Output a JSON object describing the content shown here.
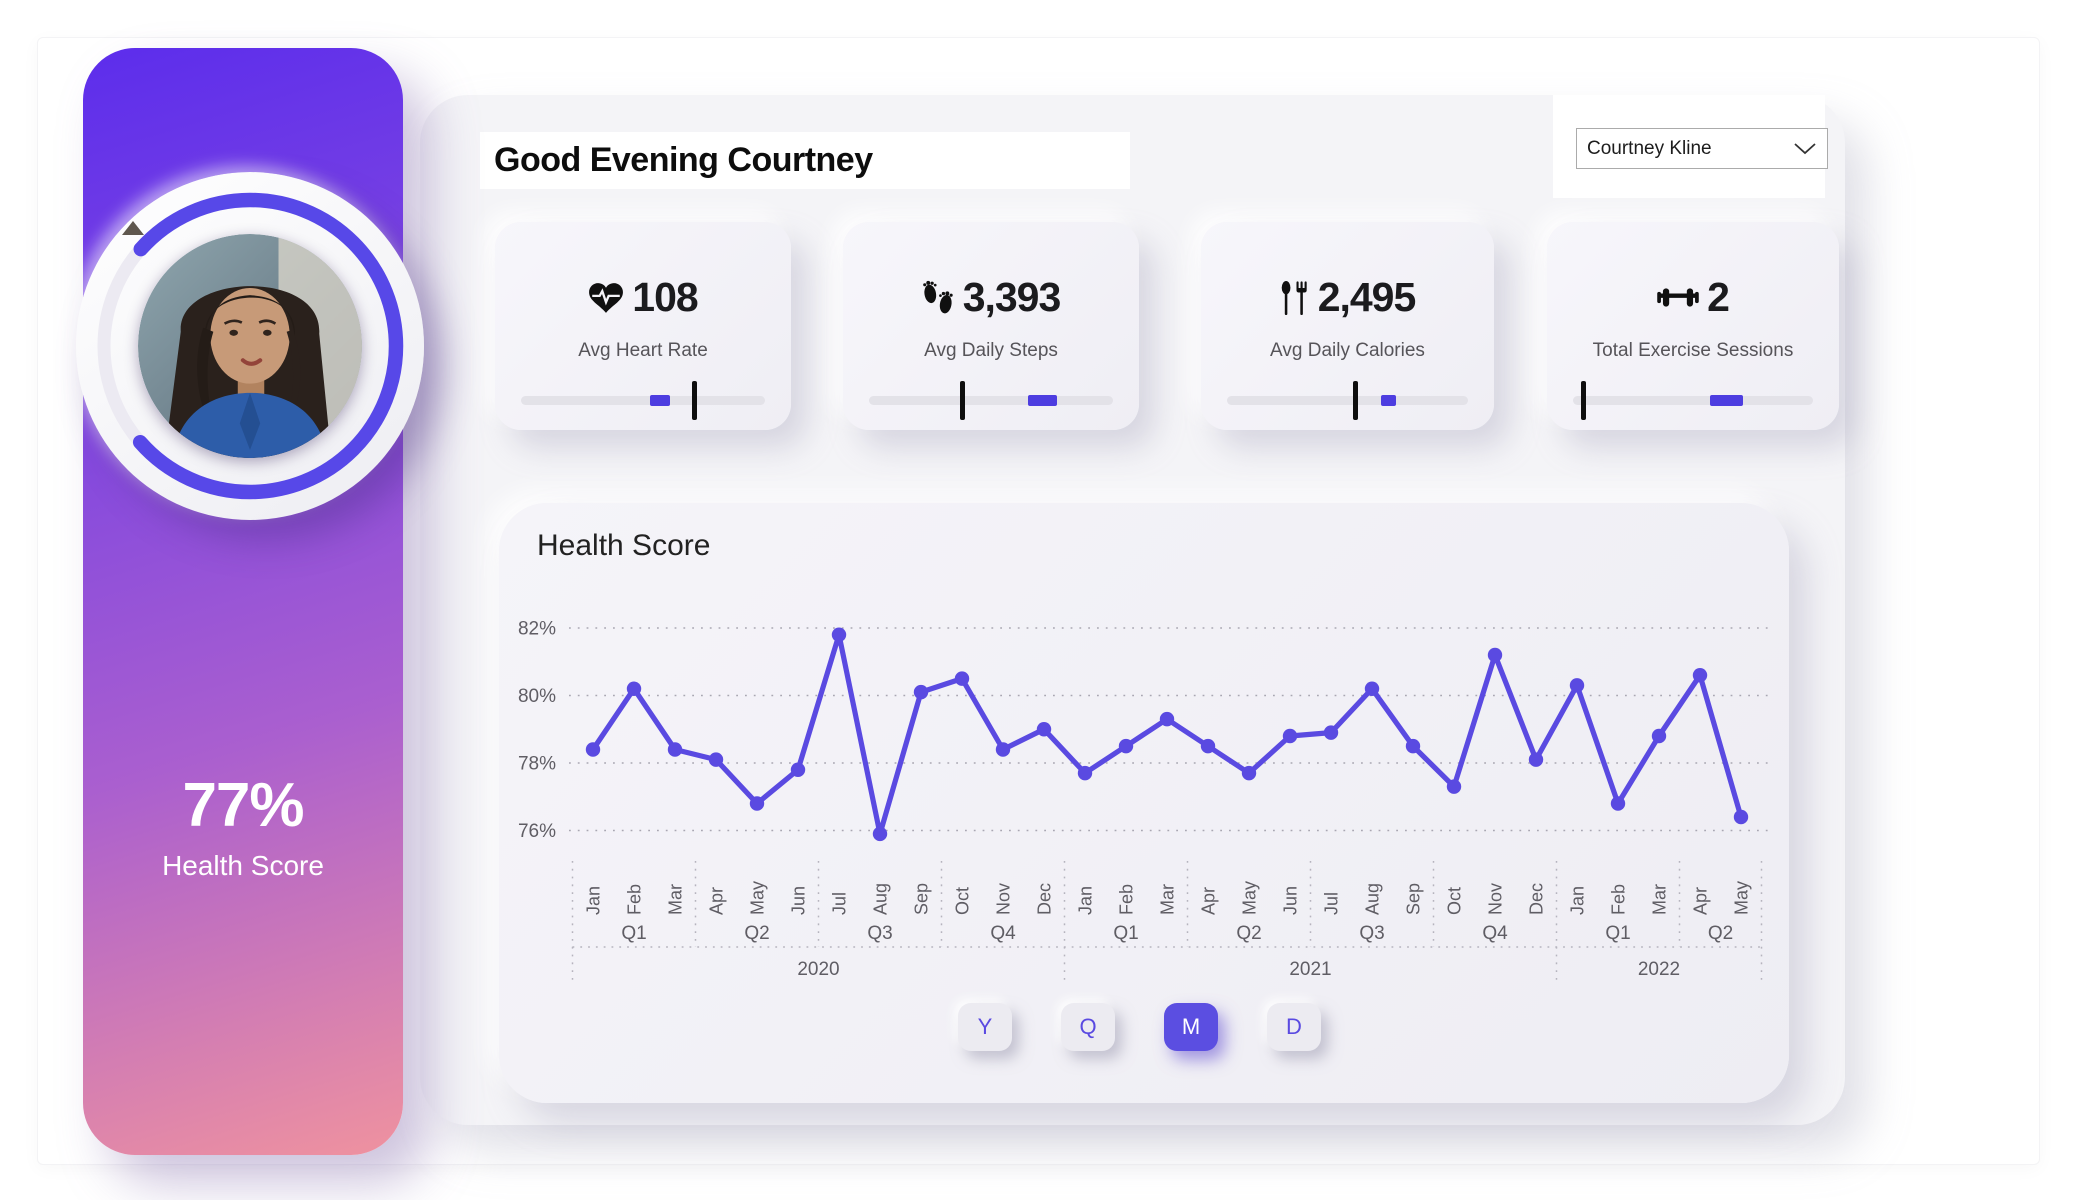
{
  "sidebar": {
    "health_score_value": "77%",
    "health_score_label": "Health Score",
    "ring_percent": 77
  },
  "header": {
    "greeting": "Good Evening Courtney",
    "user_dropdown": {
      "selected": "Courtney Kline"
    }
  },
  "kpi_cards": [
    {
      "icon": "heart-pulse-icon",
      "value": "108",
      "label": "Avg Heart Rate",
      "slider": {
        "fill_start": 53,
        "fill_end": 61,
        "marker": 71
      }
    },
    {
      "icon": "footprints-icon",
      "value": "3,393",
      "label": "Avg Daily Steps",
      "slider": {
        "fill_start": 65,
        "fill_end": 77,
        "marker": 38
      }
    },
    {
      "icon": "cutlery-icon",
      "value": "2,495",
      "label": "Avg Daily Calories",
      "slider": {
        "fill_start": 64,
        "fill_end": 70,
        "marker": 53
      }
    },
    {
      "icon": "dumbbell-icon",
      "value": "2",
      "label": "Total Exercise Sessions",
      "slider": {
        "fill_start": 57,
        "fill_end": 71,
        "marker": 4
      }
    }
  ],
  "chart_data": {
    "type": "line",
    "title": "Health Score",
    "legend": "none",
    "grid": "dotted-horizontal",
    "line_color": "#5A4AE1",
    "ylim": [
      75.5,
      82.5
    ],
    "y_axis": {
      "ticks": [
        {
          "label": "82%",
          "value": 82
        },
        {
          "label": "80%",
          "value": 80
        },
        {
          "label": "78%",
          "value": 78
        },
        {
          "label": "76%",
          "value": 76
        }
      ]
    },
    "x_axis": {
      "months": [
        "Jan",
        "Feb",
        "Mar",
        "Apr",
        "May",
        "Jun",
        "Jul",
        "Aug",
        "Sep",
        "Oct",
        "Nov",
        "Dec",
        "Jan",
        "Feb",
        "Mar",
        "Apr",
        "May",
        "Jun",
        "Jul",
        "Aug",
        "Sep",
        "Oct",
        "Nov",
        "Dec",
        "Jan",
        "Feb",
        "Mar",
        "Apr",
        "May"
      ],
      "quarters": [
        {
          "label": "Q1",
          "months": 3
        },
        {
          "label": "Q2",
          "months": 3
        },
        {
          "label": "Q3",
          "months": 3
        },
        {
          "label": "Q4",
          "months": 3
        },
        {
          "label": "Q1",
          "months": 3
        },
        {
          "label": "Q2",
          "months": 3
        },
        {
          "label": "Q3",
          "months": 3
        },
        {
          "label": "Q4",
          "months": 3
        },
        {
          "label": "Q1",
          "months": 3
        },
        {
          "label": "Q2",
          "months": 2
        }
      ],
      "years": [
        {
          "label": "2020",
          "months": 12
        },
        {
          "label": "2021",
          "months": 12
        },
        {
          "label": "2022",
          "months": 5
        }
      ]
    },
    "series": [
      {
        "name": "Health Score",
        "values": [
          78.4,
          80.2,
          78.4,
          78.1,
          76.8,
          77.8,
          81.8,
          75.9,
          80.1,
          80.5,
          78.4,
          79.0,
          77.7,
          78.5,
          79.3,
          78.5,
          77.7,
          78.8,
          78.9,
          80.2,
          78.5,
          77.3,
          81.2,
          78.1,
          80.3,
          76.8,
          78.8,
          80.6,
          76.4
        ]
      }
    ]
  },
  "time_buttons": [
    {
      "label": "Y",
      "selected": false
    },
    {
      "label": "Q",
      "selected": false
    },
    {
      "label": "M",
      "selected": true
    },
    {
      "label": "D",
      "selected": false
    }
  ],
  "colors": {
    "accent": "#5A4AE1",
    "slider_fill": "#4D3DE0",
    "slider_marker": "#0E0E0E",
    "sidebar_gradient_top": "#5C2DEC",
    "sidebar_gradient_bottom": "#EF929F",
    "panel_bg": "#F4F4F7",
    "card_bg": "#F1F0F6",
    "axis_text": "#5F5D64"
  }
}
